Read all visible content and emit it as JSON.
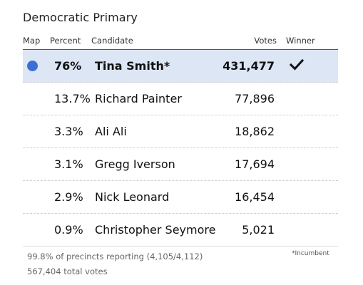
{
  "title": "Democratic Primary",
  "headers": {
    "map": "Map",
    "percent": "Percent",
    "candidate": "Candidate",
    "votes": "Votes",
    "winner": "Winner"
  },
  "rows": [
    {
      "percent": "76%",
      "candidate": "Tina Smith*",
      "votes": "431,477",
      "winner": true,
      "map_color": "#3b6fd6"
    },
    {
      "percent": "13.7%",
      "candidate": "Richard Painter",
      "votes": "77,896",
      "winner": false
    },
    {
      "percent": "3.3%",
      "candidate": "Ali Ali",
      "votes": "18,862",
      "winner": false
    },
    {
      "percent": "3.1%",
      "candidate": "Gregg Iverson",
      "votes": "17,694",
      "winner": false
    },
    {
      "percent": "2.9%",
      "candidate": "Nick Leonard",
      "votes": "16,454",
      "winner": false
    },
    {
      "percent": "0.9%",
      "candidate": "Christopher Seymore",
      "votes": "5,021",
      "winner": false
    }
  ],
  "footer": {
    "precincts": "99.8% of precincts reporting (4,105/4,112)",
    "total_votes": "567,404 total votes",
    "incumbent_note": "*Incumbent"
  },
  "colors": {
    "winner_row_bg": "#dde6f5",
    "map_dot": "#3b6fd6"
  },
  "icons": {
    "winner": "checkmark-icon"
  }
}
